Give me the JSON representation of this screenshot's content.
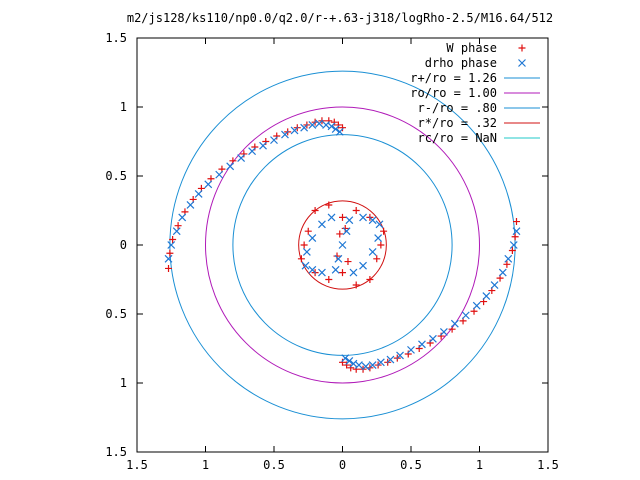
{
  "chart_data": {
    "type": "scatter",
    "title": "m2/js128/ks110/np0.0/q2.0/r-+.63-j318/logRho-2.5/M16.64/512",
    "xlabel": "",
    "ylabel": "",
    "xlim": [
      -1.5,
      1.5
    ],
    "ylim": [
      -1.5,
      1.5
    ],
    "x_ticks": [
      -1.5,
      -1,
      -0.5,
      0,
      0.5,
      1,
      1.5
    ],
    "x_tick_labels": [
      "1.5",
      "1",
      "0.5",
      "0",
      "0.5",
      "1",
      "1.5"
    ],
    "y_ticks": [
      1.5,
      1,
      0.5,
      0,
      -0.5,
      -1,
      -1.5
    ],
    "y_tick_labels": [
      "1.5",
      "1",
      "0.5",
      "0",
      "0.5",
      "1",
      "1.5"
    ],
    "grid": false,
    "legend_position": "top-right",
    "circles": [
      {
        "name": "r+/ro = 1.26",
        "radius": 1.26,
        "color": "#1a8fd4"
      },
      {
        "name": "ro/ro = 1.00",
        "radius": 1.0,
        "color": "#b01ab8"
      },
      {
        "name": "r-/ro = .80",
        "radius": 0.8,
        "color": "#1a8fd4"
      },
      {
        "name": "r*/ro = .32",
        "radius": 0.32,
        "color": "#d01010"
      },
      {
        "name": "rc/ro = NaN",
        "radius": null,
        "color": "#20c8c8"
      }
    ],
    "series": [
      {
        "name": "W phase",
        "marker": "+",
        "color": "#e01010",
        "x": [
          0.0,
          -0.03,
          -0.06,
          -0.1,
          -0.15,
          -0.2,
          -0.26,
          -0.33,
          -0.4,
          -0.48,
          -0.56,
          -0.64,
          -0.72,
          -0.8,
          -0.88,
          -0.96,
          -1.03,
          -1.09,
          -1.15,
          -1.2,
          -1.24,
          -1.26,
          -1.27,
          0.0,
          0.03,
          0.06,
          0.1,
          0.15,
          0.2,
          0.26,
          0.33,
          0.4,
          0.48,
          0.56,
          0.64,
          0.72,
          0.8,
          0.88,
          0.96,
          1.03,
          1.09,
          1.15,
          1.2,
          1.24,
          1.26,
          1.27,
          -0.1,
          -0.2,
          -0.25,
          -0.28,
          -0.3,
          -0.2,
          -0.1,
          0.0,
          0.1,
          0.2,
          0.25,
          0.28,
          0.3,
          0.2,
          0.1,
          0.0,
          -0.02,
          -0.04,
          0.02,
          0.04
        ],
        "y": [
          0.85,
          0.87,
          0.89,
          0.9,
          0.9,
          0.89,
          0.87,
          0.85,
          0.82,
          0.79,
          0.75,
          0.71,
          0.66,
          0.61,
          0.55,
          0.48,
          0.41,
          0.33,
          0.24,
          0.14,
          0.04,
          -0.06,
          -0.17,
          -0.85,
          -0.87,
          -0.89,
          -0.9,
          -0.9,
          -0.89,
          -0.87,
          -0.85,
          -0.82,
          -0.79,
          -0.75,
          -0.71,
          -0.66,
          -0.61,
          -0.55,
          -0.48,
          -0.41,
          -0.33,
          -0.24,
          -0.14,
          -0.04,
          0.06,
          0.17,
          0.29,
          0.25,
          0.1,
          0.0,
          -0.1,
          -0.2,
          -0.25,
          -0.2,
          -0.29,
          -0.25,
          -0.1,
          0.0,
          0.1,
          0.2,
          0.25,
          0.2,
          0.08,
          -0.08,
          0.12,
          -0.12
        ]
      },
      {
        "name": "drho phase",
        "marker": "x",
        "color": "#1f77d4",
        "x": [
          -0.02,
          -0.05,
          -0.08,
          -0.12,
          -0.17,
          -0.22,
          -0.28,
          -0.35,
          -0.42,
          -0.5,
          -0.58,
          -0.66,
          -0.74,
          -0.82,
          -0.9,
          -0.98,
          -1.05,
          -1.11,
          -1.17,
          -1.21,
          -1.25,
          -1.27,
          0.02,
          0.05,
          0.08,
          0.12,
          0.17,
          0.22,
          0.28,
          0.35,
          0.42,
          0.5,
          0.58,
          0.66,
          0.74,
          0.82,
          0.9,
          0.98,
          1.05,
          1.11,
          1.17,
          1.21,
          1.25,
          1.27,
          -0.08,
          -0.15,
          -0.22,
          -0.26,
          -0.27,
          -0.22,
          -0.15,
          -0.05,
          0.08,
          0.15,
          0.22,
          0.26,
          0.27,
          0.22,
          0.15,
          0.05,
          0.0,
          0.03,
          -0.03
        ],
        "y": [
          0.82,
          0.84,
          0.86,
          0.87,
          0.88,
          0.87,
          0.85,
          0.83,
          0.8,
          0.76,
          0.72,
          0.68,
          0.63,
          0.57,
          0.51,
          0.44,
          0.37,
          0.29,
          0.2,
          0.1,
          0.0,
          -0.1,
          -0.82,
          -0.84,
          -0.86,
          -0.87,
          -0.88,
          -0.87,
          -0.85,
          -0.83,
          -0.8,
          -0.76,
          -0.72,
          -0.68,
          -0.63,
          -0.57,
          -0.51,
          -0.44,
          -0.37,
          -0.29,
          -0.2,
          -0.1,
          0.0,
          0.1,
          0.2,
          0.15,
          0.05,
          -0.05,
          -0.15,
          -0.18,
          -0.2,
          -0.18,
          -0.2,
          -0.15,
          -0.05,
          0.05,
          0.15,
          0.18,
          0.2,
          0.18,
          0.0,
          0.1,
          -0.1
        ]
      }
    ]
  }
}
